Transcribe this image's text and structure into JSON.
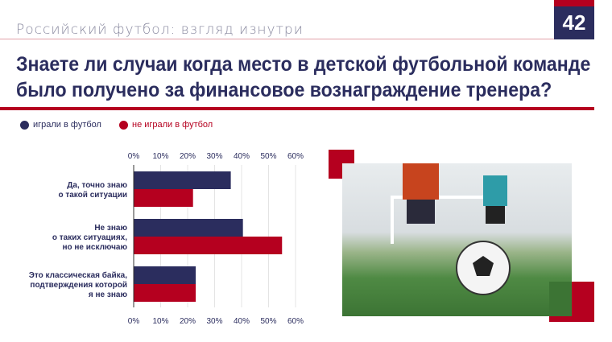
{
  "header": {
    "subtitle": "Российский футбол: взгляд изнутри",
    "page_number": "42"
  },
  "title": "Знаете ли случаи когда место в детской футбольной команде было получено за финансовое вознаграждение тренера?",
  "colors": {
    "navy": "#2b2d5e",
    "red": "#b5001f"
  },
  "chart_data": {
    "type": "bar",
    "orientation": "horizontal",
    "categories": [
      "Да, точно знаю\nо такой ситуации",
      "Не знаю\nо таких ситуациях,\nно не исключаю",
      "Это классическая байка,\nподтверждения которой\nя не знаю"
    ],
    "series": [
      {
        "name": "играли в футбол",
        "color": "#2b2d5e",
        "values": [
          36,
          40.5,
          23
        ]
      },
      {
        "name": "не играли в футбол",
        "color": "#b5001f",
        "values": [
          22,
          55,
          23
        ]
      }
    ],
    "xlim": [
      0,
      60
    ],
    "ticks": [
      "0%",
      "10%",
      "20%",
      "30%",
      "40%",
      "50%",
      "60%"
    ],
    "grid": true,
    "legend": "top-left"
  },
  "image": {
    "description_icon": "football-photo"
  }
}
